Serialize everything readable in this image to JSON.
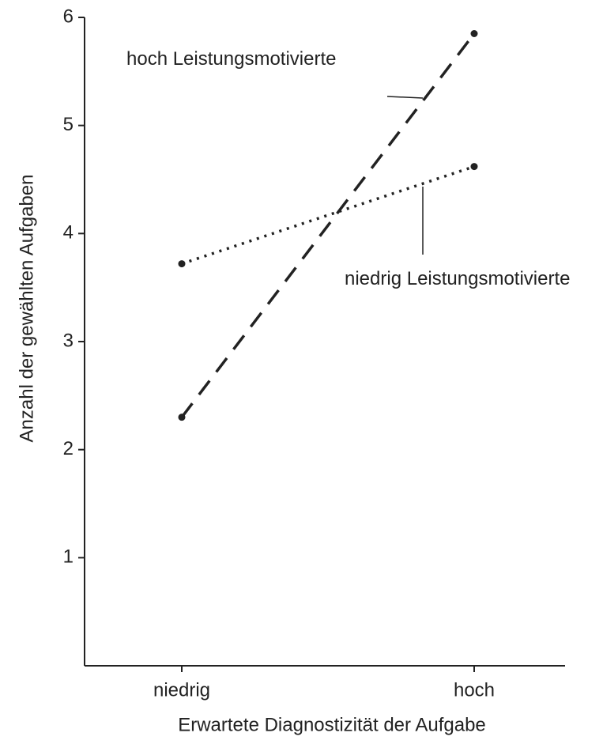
{
  "chart_data": {
    "type": "line",
    "x_label": "Erwartete Diagnostizität der Aufgabe",
    "y_label": "Anzahl der gewählten Aufgaben",
    "categories": [
      "niedrig",
      "hoch"
    ],
    "series": [
      {
        "name": "hoch Leistungsmotivierte",
        "color": "#222222",
        "values": [
          2.3,
          5.85
        ]
      },
      {
        "name": "niedrig Leistungsmotivierte",
        "color": "#222222",
        "values": [
          3.72,
          4.62
        ]
      }
    ],
    "ylim": [
      0,
      6
    ],
    "yticks": [
      1,
      2,
      3,
      4,
      5,
      6
    ]
  }
}
